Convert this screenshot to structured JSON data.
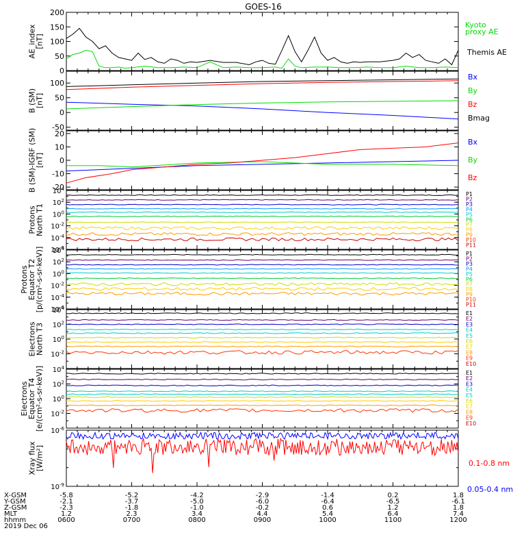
{
  "title": "GOES-16",
  "colors": {
    "black": "#000000",
    "blue": "#0000ff",
    "green": "#00dd00",
    "red": "#ff0000",
    "P1": "#000000",
    "P2": "#660066",
    "P3": "#0000cc",
    "P4": "#0099ff",
    "P5": "#00cccc",
    "P6": "#00cc33",
    "P7": "#ccdd00",
    "P8": "#ffcc00",
    "P9": "#ff9900",
    "P10": "#ff3300",
    "P11": "#cc0000"
  },
  "chart_data": [
    {
      "type": "line",
      "panel": "ae",
      "ylabel_lines": [
        "AE_index",
        "[nT]"
      ],
      "ylim": [
        0,
        200
      ],
      "ticks": [
        {
          "v": 0,
          "label": "0"
        },
        {
          "v": 50,
          "label": "50"
        },
        {
          "v": 100,
          "label": "100"
        },
        {
          "v": 150,
          "label": "150"
        },
        {
          "v": 200,
          "label": "200"
        }
      ],
      "legend": [
        {
          "text": "Kyoto",
          "color": "#00dd00"
        },
        {
          "text": "proxy AE",
          "color": "#00dd00"
        },
        {
          "text": "Themis AE",
          "color": "#000000"
        }
      ],
      "series": [
        {
          "name": "Themis AE",
          "color": "#000000",
          "x": [
            6.0,
            6.1,
            6.2,
            6.3,
            6.4,
            6.5,
            6.6,
            6.7,
            6.8,
            6.9,
            7.0,
            7.1,
            7.2,
            7.3,
            7.4,
            7.5,
            7.6,
            7.7,
            7.8,
            7.9,
            8.0,
            8.2,
            8.4,
            8.6,
            8.8,
            8.9,
            9.0,
            9.1,
            9.2,
            9.3,
            9.4,
            9.5,
            9.6,
            9.7,
            9.8,
            9.9,
            10.0,
            10.1,
            10.2,
            10.3,
            10.4,
            10.5,
            10.6,
            10.8,
            11.0,
            11.1,
            11.2,
            11.3,
            11.4,
            11.5,
            11.6,
            11.7,
            11.8,
            11.9,
            12.0
          ],
          "y": [
            110,
            125,
            145,
            115,
            100,
            75,
            85,
            60,
            45,
            40,
            35,
            60,
            38,
            45,
            30,
            25,
            40,
            35,
            25,
            30,
            28,
            35,
            28,
            28,
            20,
            30,
            35,
            25,
            22,
            70,
            120,
            65,
            30,
            70,
            115,
            60,
            35,
            45,
            30,
            25,
            30,
            28,
            30,
            30,
            35,
            40,
            60,
            45,
            55,
            35,
            30,
            25,
            40,
            20,
            70
          ]
        },
        {
          "name": "Kyoto proxy AE",
          "color": "#00dd00",
          "x": [
            6.0,
            6.1,
            6.2,
            6.3,
            6.4,
            6.5,
            6.6,
            6.7,
            6.8,
            6.9,
            7.0,
            7.2,
            7.4,
            7.6,
            7.8,
            8.0,
            8.2,
            8.4,
            8.6,
            8.8,
            9.0,
            9.2,
            9.3,
            9.4,
            9.5,
            9.6,
            9.8,
            10.0,
            10.2,
            10.4,
            10.6,
            10.8,
            11.0,
            11.2,
            11.4,
            11.6,
            11.8,
            12.0
          ],
          "y": [
            40,
            55,
            60,
            70,
            65,
            15,
            10,
            10,
            12,
            8,
            10,
            15,
            10,
            10,
            12,
            10,
            30,
            10,
            12,
            10,
            10,
            12,
            8,
            40,
            15,
            10,
            12,
            12,
            10,
            10,
            12,
            10,
            10,
            15,
            10,
            10,
            12,
            10
          ]
        }
      ]
    },
    {
      "type": "line",
      "panel": "bsm",
      "ylabel_lines": [
        "B (SM)",
        "[nT]"
      ],
      "ylim": [
        -60,
        140
      ],
      "ticks": [
        {
          "v": -50,
          "label": "-50"
        },
        {
          "v": 0,
          "label": "0"
        },
        {
          "v": 50,
          "label": "50"
        },
        {
          "v": 100,
          "label": "100"
        }
      ],
      "legend": [
        {
          "text": "Bx",
          "color": "#0000ff"
        },
        {
          "text": "By",
          "color": "#00dd00"
        },
        {
          "text": "Bz",
          "color": "#ff0000"
        },
        {
          "text": "Bmag",
          "color": "#000000"
        }
      ],
      "series": [
        {
          "name": "Bx",
          "color": "#0000ff",
          "x": [
            6,
            7,
            8,
            9,
            10,
            11,
            12
          ],
          "y": [
            35,
            28,
            22,
            12,
            0,
            -10,
            -22
          ]
        },
        {
          "name": "By",
          "color": "#00dd00",
          "x": [
            6,
            7,
            8,
            9,
            10,
            11,
            12
          ],
          "y": [
            12,
            20,
            27,
            32,
            36,
            38,
            40
          ]
        },
        {
          "name": "Bz",
          "color": "#ff0000",
          "x": [
            6,
            7,
            8,
            9,
            10,
            11,
            12
          ],
          "y": [
            78,
            86,
            92,
            98,
            102,
            105,
            108
          ]
        },
        {
          "name": "Bmag",
          "color": "#000000",
          "x": [
            6,
            7,
            8,
            9,
            10,
            11,
            12
          ],
          "y": [
            88,
            94,
            100,
            105,
            108,
            111,
            114
          ]
        }
      ]
    },
    {
      "type": "line",
      "panel": "bsm_igrf",
      "ylabel_lines": [
        "B (SM)-IGRF (SM)",
        "[nT]"
      ],
      "ylim": [
        -22,
        22
      ],
      "ticks": [
        {
          "v": -20,
          "label": "-20"
        },
        {
          "v": -10,
          "label": "-10"
        },
        {
          "v": 0,
          "label": "0"
        },
        {
          "v": 10,
          "label": "10"
        },
        {
          "v": 20,
          "label": "20"
        }
      ],
      "legend": [
        {
          "text": "Bx",
          "color": "#0000ff"
        },
        {
          "text": "By",
          "color": "#00dd00"
        },
        {
          "text": "Bz",
          "color": "#ff0000"
        }
      ],
      "series": [
        {
          "name": "Bx",
          "color": "#0000ff",
          "x": [
            6,
            7,
            8,
            9,
            10,
            11,
            12
          ],
          "y": [
            -8,
            -6,
            -4,
            -3,
            -2,
            -1,
            0
          ]
        },
        {
          "name": "By",
          "color": "#00dd00",
          "x": [
            6,
            6.5,
            7,
            8,
            9,
            10,
            11,
            12
          ],
          "y": [
            -4,
            -4,
            -5,
            -2,
            -1,
            -3,
            -3,
            -4
          ]
        },
        {
          "name": "Bz",
          "color": "#ff0000",
          "x": [
            6,
            6.3,
            6.7,
            7,
            7.5,
            8,
            8.5,
            9,
            9.5,
            10,
            10.5,
            11,
            11.5,
            12
          ],
          "y": [
            -17,
            -13,
            -10,
            -7,
            -5,
            -3,
            -2,
            0,
            2,
            5,
            8,
            9,
            10,
            13
          ]
        }
      ]
    },
    {
      "type": "line",
      "panel": "protons_t1",
      "ylog": true,
      "ylabel_lines": [
        "Protons",
        "North T1"
      ],
      "ylim_exp": [
        -6,
        4
      ],
      "ticks": [
        {
          "v": 4,
          "label": "10^4"
        },
        {
          "v": 2,
          "label": "10^2"
        },
        {
          "v": 0,
          "label": "10^0"
        },
        {
          "v": -2,
          "label": "10^-2"
        },
        {
          "v": -4,
          "label": "10^-4"
        },
        {
          "v": -6,
          "label": "10^-6"
        }
      ],
      "legend": [
        "P1",
        "P2",
        "P3",
        "P4",
        "P5",
        "P6",
        "P7",
        "P8",
        "P9",
        "P10",
        "P11"
      ],
      "series_levels": [
        {
          "name": "P1",
          "log": 3.2
        },
        {
          "name": "P2",
          "log": 2.4
        },
        {
          "name": "P3",
          "log": 1.6
        },
        {
          "name": "P4",
          "log": 0.9
        },
        {
          "name": "P5",
          "log": 0.3
        },
        {
          "name": "P6",
          "log": -0.4
        },
        {
          "name": "P7",
          "log": -1.4
        },
        {
          "name": "P8",
          "log": -2.4
        },
        {
          "name": "P9",
          "log": -3.4
        },
        {
          "name": "P11",
          "log": -4.3
        }
      ]
    },
    {
      "type": "line",
      "panel": "protons_t2",
      "ylog": true,
      "ylabel_lines": [
        "Protons",
        "Equator T2",
        "[p/(cm²-s-sr-keV)]"
      ],
      "ylim_exp": [
        -6,
        4
      ],
      "ticks": [
        {
          "v": 4,
          "label": "10^4"
        },
        {
          "v": 2,
          "label": "10^2"
        },
        {
          "v": 0,
          "label": "10^0"
        },
        {
          "v": -2,
          "label": "10^-2"
        },
        {
          "v": -4,
          "label": "10^-4"
        },
        {
          "v": -6,
          "label": "10^-6"
        }
      ],
      "legend": [
        "P1",
        "P2",
        "P3",
        "P4",
        "P5",
        "P6",
        "P7",
        "P8",
        "P9",
        "P10",
        "P11"
      ],
      "series_levels": [
        {
          "name": "P1",
          "log": 3.2
        },
        {
          "name": "P2",
          "log": 2.3
        },
        {
          "name": "P3",
          "log": 1.5
        },
        {
          "name": "P4",
          "log": 0.8
        },
        {
          "name": "P5",
          "log": 0.1
        },
        {
          "name": "P6",
          "log": -0.8
        },
        {
          "name": "P7",
          "log": -1.8
        },
        {
          "name": "P8",
          "log": -2.6
        },
        {
          "name": "P9",
          "log": -3.4
        }
      ]
    },
    {
      "type": "line",
      "panel": "electrons_t3",
      "ylog": true,
      "ylabel_lines": [
        "Electrons",
        "North T3"
      ],
      "ylim_exp": [
        -4,
        4
      ],
      "ticks": [
        {
          "v": 4,
          "label": "10^4"
        },
        {
          "v": 2,
          "label": "10^2"
        },
        {
          "v": 0,
          "label": "10^0"
        },
        {
          "v": -2,
          "label": "10^-2"
        }
      ],
      "legend": [
        "E1",
        "E2",
        "E3",
        "E4",
        "E5",
        "E6",
        "E7",
        "E8",
        "E9",
        "E10"
      ],
      "legend_colors": [
        "#000000",
        "#660066",
        "#0000cc",
        "#00cccc",
        "#00cccc",
        "#ccdd00",
        "#ffcc00",
        "#ff9900",
        "#ff3300",
        "#cc0000"
      ],
      "series_levels": [
        {
          "name": "E1",
          "log": 3.5
        },
        {
          "name": "E2",
          "log": 2.6
        },
        {
          "name": "E3",
          "log": 2.0
        },
        {
          "name": "E4",
          "log": 1.3
        },
        {
          "name": "E5",
          "log": 0.8
        },
        {
          "name": "E6",
          "log": 0.2
        },
        {
          "name": "E7",
          "log": -0.4
        },
        {
          "name": "E8",
          "log": -1.0
        },
        {
          "name": "E9",
          "log": -1.8
        }
      ]
    },
    {
      "type": "line",
      "panel": "electrons_t4",
      "ylog": true,
      "ylabel_lines": [
        "Electrons",
        "Equator T4",
        "[e/(cm²-s-sr-keV)]"
      ],
      "ylim_exp": [
        -4,
        4
      ],
      "ticks": [
        {
          "v": 4,
          "label": "10^4"
        },
        {
          "v": 2,
          "label": "10^2"
        },
        {
          "v": 0,
          "label": "10^0"
        },
        {
          "v": -2,
          "label": "10^-2"
        }
      ],
      "legend": [
        "E1",
        "E2",
        "E3",
        "E4",
        "E5",
        "E6",
        "E7",
        "E8",
        "E9",
        "E10"
      ],
      "legend_colors": [
        "#000000",
        "#660066",
        "#0000cc",
        "#00cccc",
        "#00cccc",
        "#ccdd00",
        "#ffcc00",
        "#ff9900",
        "#ff3300",
        "#cc0000"
      ],
      "series_levels": [
        {
          "name": "E1",
          "log": 3.4
        },
        {
          "name": "E2",
          "log": 2.6
        },
        {
          "name": "E3",
          "log": 1.8
        },
        {
          "name": "E4",
          "log": 1.0
        },
        {
          "name": "E5",
          "log": 0.6
        },
        {
          "name": "E6",
          "log": 0.2
        },
        {
          "name": "E7",
          "log": -0.3
        },
        {
          "name": "E8",
          "log": -0.9
        },
        {
          "name": "E9",
          "log": -1.6
        }
      ]
    },
    {
      "type": "line",
      "panel": "xray",
      "ylog": true,
      "ylabel_lines": [
        "Xray flux",
        "[W/m²]"
      ],
      "ylim_exp": [
        -9,
        -6
      ],
      "ticks": [
        {
          "v": -6,
          "label": "10^-6"
        },
        {
          "v": -9,
          "label": "10^-9"
        }
      ],
      "legend": [
        {
          "text": "0.1-0.8 nm",
          "color": "#ff0000"
        },
        {
          "text": "0.05-0.4 nm",
          "color": "#0000ff"
        }
      ],
      "series_levels": [
        {
          "name": "0.05-0.4 nm",
          "log": -6.3
        },
        {
          "name": "0.1-0.8 nm",
          "log": -6.9
        }
      ]
    }
  ],
  "x_axis": {
    "xlim": [
      6,
      12
    ],
    "rows": [
      {
        "label": "X-GSM",
        "values": [
          "-5.8",
          "-5.2",
          "-4.2",
          "-2.9",
          "-1.4",
          "0.2",
          "1.8"
        ]
      },
      {
        "label": "Y-GSM",
        "values": [
          "-2.1",
          "-3.7",
          "-5.0",
          "-6.0",
          "-6.4",
          "-6.5",
          "-6.1"
        ]
      },
      {
        "label": "Z-GSM",
        "values": [
          "-2.3",
          "-1.8",
          "-1.0",
          "-0.2",
          "0.6",
          "1.2",
          "1.8"
        ]
      },
      {
        "label": "MLT",
        "values": [
          "1.2",
          "2.3",
          "3.4",
          "4.4",
          "5.4",
          "6.4",
          "7.4"
        ]
      },
      {
        "label": "hhmm",
        "values": [
          "0600",
          "0700",
          "0800",
          "0900",
          "1000",
          "1100",
          "1200"
        ]
      }
    ],
    "date": "2019 Dec 06"
  }
}
